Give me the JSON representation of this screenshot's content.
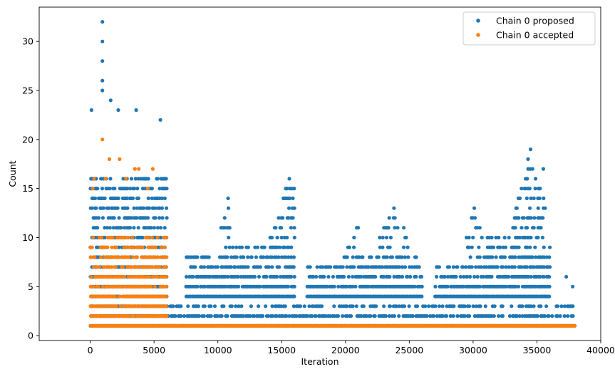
{
  "chart_data": {
    "type": "scatter",
    "title": "",
    "xlabel": "Iteration",
    "ylabel": "Count",
    "xlim": [
      -4000,
      40000
    ],
    "ylim": [
      -0.5,
      33.5
    ],
    "x_ticks": [
      0,
      5000,
      10000,
      15000,
      20000,
      25000,
      30000,
      35000,
      40000
    ],
    "y_ticks": [
      0,
      5,
      10,
      15,
      20,
      25,
      30
    ],
    "legend_position": "top-right",
    "series": [
      {
        "name": "Chain 0 proposed",
        "color": "#1f77b4",
        "marker": "circle",
        "bands": [
          {
            "x_start": 0,
            "x_end": 6000,
            "y_min": 1,
            "y_max": 16
          },
          {
            "x_start": 6000,
            "x_end": 38000,
            "y_min": 1,
            "y_max": 3
          },
          {
            "x_start": 7500,
            "x_end": 11000,
            "y_min": 4,
            "y_max": 8,
            "peak_x": 10800,
            "peak_y": 14
          },
          {
            "x_start": 11000,
            "x_end": 16000,
            "y_min": 4,
            "y_max": 9,
            "peak_x": 15600,
            "peak_y": 16
          },
          {
            "x_start": 17000,
            "x_end": 21000,
            "y_min": 4,
            "y_max": 7,
            "peak_x": 21000,
            "peak_y": 11
          },
          {
            "x_start": 21000,
            "x_end": 26000,
            "y_min": 4,
            "y_max": 8,
            "peak_x": 23800,
            "peak_y": 13
          },
          {
            "x_start": 27000,
            "x_end": 31000,
            "y_min": 4,
            "y_max": 7,
            "peak_x": 30100,
            "peak_y": 13
          },
          {
            "x_start": 31000,
            "x_end": 36000,
            "y_min": 4,
            "y_max": 10,
            "peak_x": 34500,
            "peak_y": 19
          }
        ],
        "outliers": [
          {
            "x": 950,
            "y": 32
          },
          {
            "x": 950,
            "y": 30
          },
          {
            "x": 950,
            "y": 28
          },
          {
            "x": 950,
            "y": 26
          },
          {
            "x": 950,
            "y": 25
          },
          {
            "x": 1600,
            "y": 24
          },
          {
            "x": 3600,
            "y": 23
          },
          {
            "x": 100,
            "y": 23
          },
          {
            "x": 5500,
            "y": 22
          },
          {
            "x": 2200,
            "y": 23
          },
          {
            "x": 34500,
            "y": 19
          },
          {
            "x": 35500,
            "y": 17
          },
          {
            "x": 15600,
            "y": 16
          },
          {
            "x": 37300,
            "y": 6
          },
          {
            "x": 37800,
            "y": 5
          },
          {
            "x": 16000,
            "y": 13
          },
          {
            "x": 10800,
            "y": 14
          },
          {
            "x": 23800,
            "y": 13
          }
        ]
      },
      {
        "name": "Chain 0 accepted",
        "color": "#ff7f0e",
        "marker": "circle",
        "bands": [
          {
            "x_start": 0,
            "x_end": 6000,
            "y_min": 1,
            "y_max": 10
          },
          {
            "x_start": 6000,
            "x_end": 38000,
            "y_min": 1,
            "y_max": 1
          }
        ],
        "outliers": [
          {
            "x": 950,
            "y": 20
          },
          {
            "x": 1500,
            "y": 18
          },
          {
            "x": 2300,
            "y": 18
          },
          {
            "x": 3500,
            "y": 17
          },
          {
            "x": 3800,
            "y": 17
          },
          {
            "x": 4900,
            "y": 17
          },
          {
            "x": 300,
            "y": 16
          },
          {
            "x": 1200,
            "y": 16
          },
          {
            "x": 2800,
            "y": 16
          },
          {
            "x": 200,
            "y": 15
          },
          {
            "x": 4500,
            "y": 15
          }
        ]
      }
    ]
  }
}
